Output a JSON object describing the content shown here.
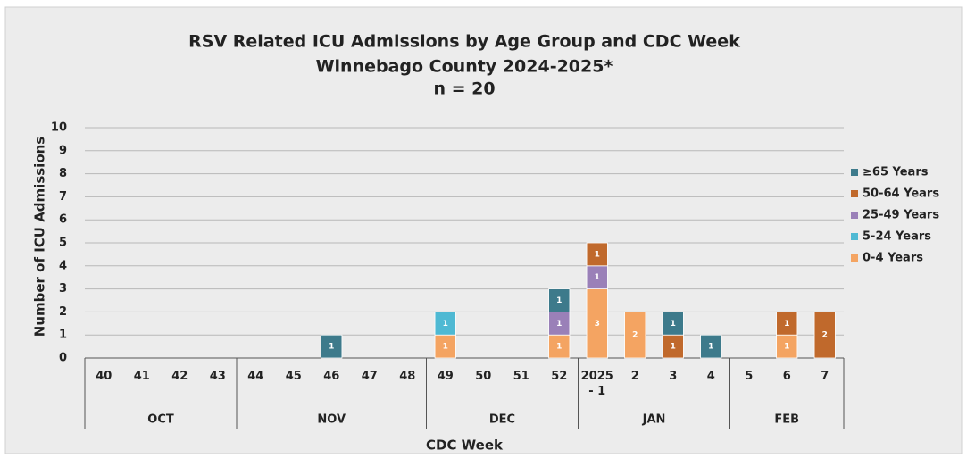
{
  "chart_data": {
    "type": "stacked_bar",
    "title": [
      "RSV Related ICU Admissions by Age Group and CDC Week",
      "Winnebago County 2024-2025*",
      "n = 20"
    ],
    "x_label": "CDC Week",
    "y_label": "Number of ICU Admissions",
    "categories": [
      "40",
      "41",
      "42",
      "43",
      "44",
      "45",
      "46",
      "47",
      "48",
      "49",
      "50",
      "51",
      "52",
      "2025 - 1",
      "2",
      "3",
      "4",
      "5",
      "6",
      "7"
    ],
    "groups": [
      {
        "name": "OCT",
        "span": 4
      },
      {
        "name": "NOV",
        "span": 5
      },
      {
        "name": "DEC",
        "span": 4
      },
      {
        "name": "JAN",
        "span": 4
      },
      {
        "name": "FEB",
        "span": 3
      }
    ],
    "series": [
      {
        "name": "0-4 Years",
        "color": "#f4a462",
        "values": [
          0,
          0,
          0,
          0,
          0,
          0,
          0,
          0,
          0,
          1,
          0,
          0,
          1,
          3,
          2,
          0,
          0,
          0,
          1,
          0
        ]
      },
      {
        "name": "5-24 Years",
        "color": "#4fb9d3",
        "values": [
          0,
          0,
          0,
          0,
          0,
          0,
          0,
          0,
          0,
          1,
          0,
          0,
          0,
          0,
          0,
          0,
          0,
          0,
          0,
          0
        ]
      },
      {
        "name": "25-49 Years",
        "color": "#9a80b8",
        "values": [
          0,
          0,
          0,
          0,
          0,
          0,
          0,
          0,
          0,
          0,
          0,
          0,
          1,
          1,
          0,
          0,
          0,
          0,
          0,
          0
        ]
      },
      {
        "name": "50-64 Years",
        "color": "#c0692c",
        "values": [
          0,
          0,
          0,
          0,
          0,
          0,
          0,
          0,
          0,
          0,
          0,
          0,
          0,
          1,
          0,
          1,
          0,
          0,
          1,
          2
        ]
      },
      {
        "name": "≥65 Years",
        "color": "#3d7a8b",
        "values": [
          0,
          0,
          0,
          0,
          0,
          0,
          1,
          0,
          0,
          0,
          0,
          0,
          1,
          0,
          0,
          1,
          1,
          0,
          0,
          0
        ]
      }
    ],
    "ylim": [
      0,
      10
    ],
    "yticks": [
      0,
      1,
      2,
      3,
      4,
      5,
      6,
      7,
      8,
      9,
      10
    ],
    "grid": true,
    "legend": "right"
  }
}
